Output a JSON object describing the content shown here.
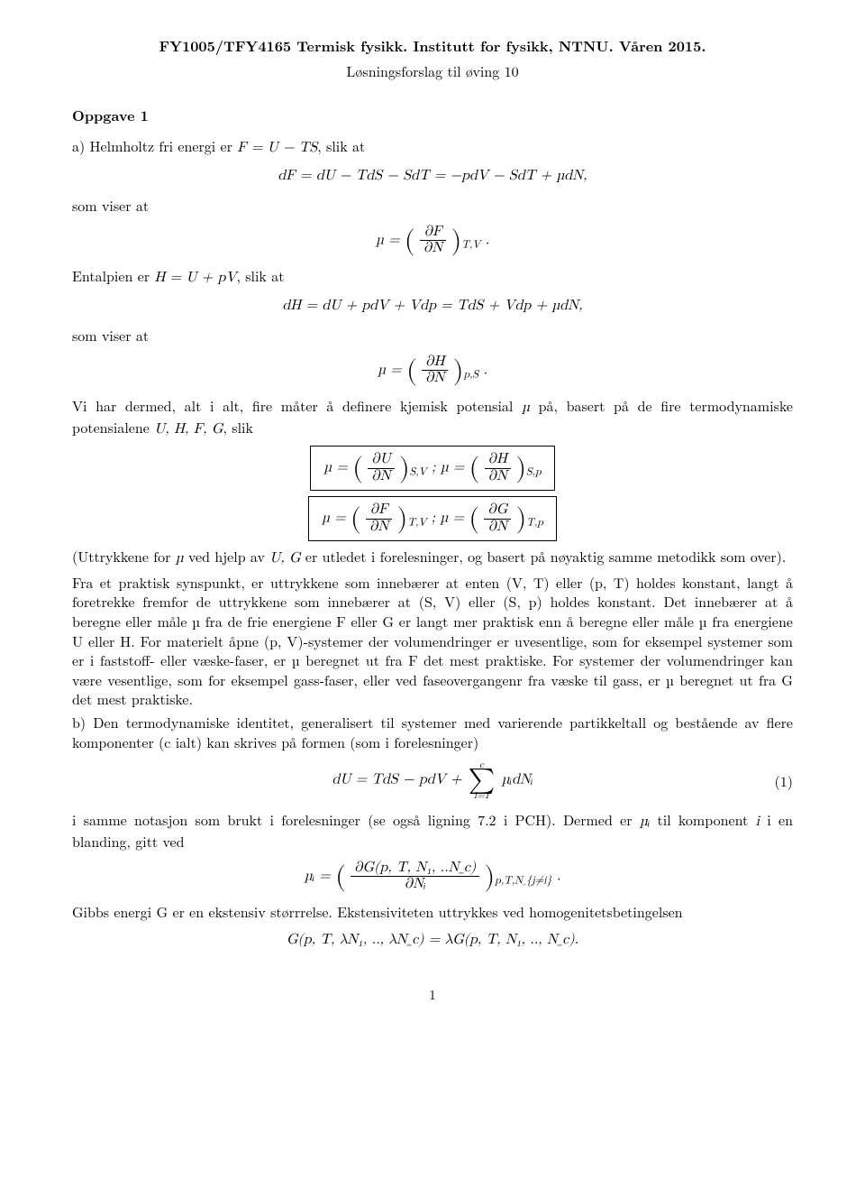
{
  "header": {
    "title": "FY1005/TFY4165 Termisk fysikk. Institutt for fysikk, NTNU. Våren 2015.",
    "subtitle": "Løsningsforslag til øving 10"
  },
  "sec": {
    "oppgave": "Oppgave 1"
  },
  "text": {
    "a_intro": "a) Helmholtz fri energi er ",
    "a_intro2": ", slik at",
    "eq1": "dF = dU − TdS − SdT = −pdV − SdT + µdN,",
    "som_viser_at": "som viser at",
    "entalpien": "Entalpien er ",
    "entalpien2": ", slik at",
    "eq3": "dH = dU + pdV + Vdp = TdS + Vdp + µdN,",
    "vi_har": "Vi har dermed, alt i alt, fire måter å definere kjemisk potensial ",
    "vi_har2": " på, basert på de fire termodynamiske potensialene ",
    "vi_har3": ", slik",
    "uttrykk_pre": "(Uttrykkene for ",
    "uttrykk_mid": " ved hjelp av ",
    "uttrykk_post": " er utledet i forelesninger, og basert på nøyaktig samme metodikk som over).",
    "long_para": "Fra et praktisk synspunkt, er uttrykkene som innebærer at enten (V, T) eller (p, T) holdes konstant, langt å foretrekke fremfor de uttrykkene som innebærer at (S, V) eller (S, p) holdes konstant. Det innebærer at å beregne eller måle µ fra de frie energiene F eller G er langt mer praktisk enn å beregne eller måle µ fra energiene U eller H. For materielt åpne (p, V)-systemer der volumendringer er uvesentlige, som for eksempel systemer som er i faststoff- eller væske-faser, er µ beregnet ut fra F det mest praktiske. For systemer der volumendringer kan være vesentlige, som for eksempel gass-faser, eller ved faseovergangenr fra væske til gass, er µ beregnet ut fra G det mest praktiske.",
    "b_intro": "b) Den termodynamiske identitet, generalisert til systemer med varierende partikkeltall og bestående av flere komponenter (c ialt) kan skrives på formen (som i forelesninger)",
    "i_samme": "i samme notasjon som brukt i forelesninger (se også ligning 7.2 i PCH). Dermed er ",
    "i_samme2": " til komponent ",
    "i_samme3": " i en blanding, gitt ved",
    "gibbs": "Gibbs energi G er en ekstensiv størrrelse. Ekstensiviteten uttrykkes ved homogenitetsbetingelsen",
    "eq_hom": "G(p, T, λN₁, .., λN_c) = λG(p, T, N₁, .., N_c)."
  },
  "math": {
    "F_def": "F = U − TS",
    "H_def": "H = U + pV",
    "mu_label": "µ = ",
    "dF": "∂F",
    "dH": "∂H",
    "dU": "∂U",
    "dG": "∂G",
    "dN": "∂N",
    "dNi": "∂Nᵢ",
    "dG_full": "∂G(p, T, N₁, ..N_c)",
    "sub_TV": "T,V",
    "sub_pS": "p,S",
    "sub_SV": "S,V",
    "sub_Sp": "S,p",
    "sub_Tp": "T,p",
    "sub_pTNj": "p,T,N_{j≠i}",
    "semicolon": "   ;   ",
    "mu": "µ",
    "mu_i": "µᵢ",
    "UG": "U, G",
    "UHFG": "U, H, F, G",
    "i_var": "i",
    "dU_eq_pre": "dU = TdS − pdV + ",
    "dU_eq_post": " µᵢdNᵢ",
    "sum_top": "c",
    "sum_bot": "i=1",
    "period": "."
  },
  "eqnum": {
    "one": "(1)"
  },
  "page": {
    "num": "1"
  }
}
